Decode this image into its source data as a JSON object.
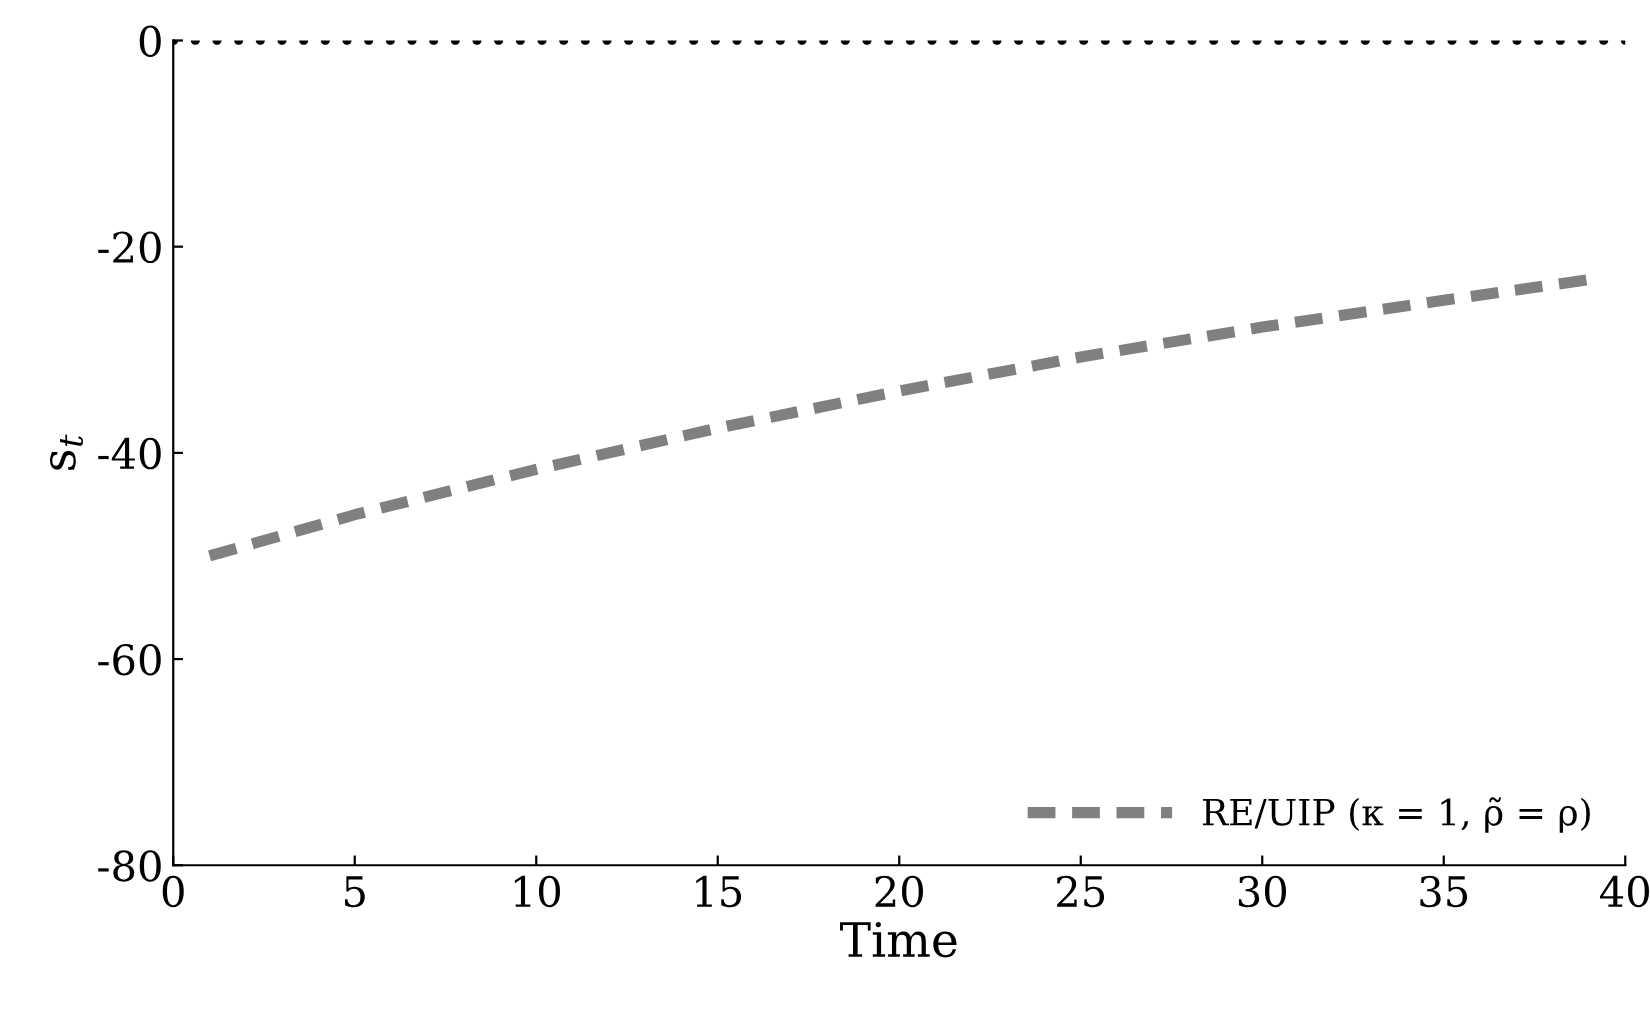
{
  "chart_data": {
    "type": "line",
    "xlabel": "Time",
    "ylabel": "s$_{t}$",
    "series": [
      {
        "name": "RE/UIP (κ = 1, ρ̃ = ρ)",
        "color": "#808080",
        "line_style": "dashed",
        "marker": "none",
        "x": [
          1,
          5,
          10,
          15,
          20,
          25,
          30,
          35,
          39
        ],
        "values": [
          -50,
          -46,
          -41.6,
          -37.6,
          -34,
          -30.7,
          -27.8,
          -25.2,
          -23.2
        ]
      }
    ],
    "ref_lines": [
      {
        "axis": "y",
        "value": 0,
        "color": "#000000",
        "line_style": "dotted"
      }
    ],
    "xlim": [
      0,
      40
    ],
    "ylim": [
      -80,
      0
    ],
    "xticks": [
      0,
      5,
      10,
      15,
      20,
      25,
      30,
      35,
      40
    ],
    "yticks": [
      -80,
      -60,
      -40,
      -20,
      0
    ],
    "grid": false,
    "legend": "bottom right"
  }
}
